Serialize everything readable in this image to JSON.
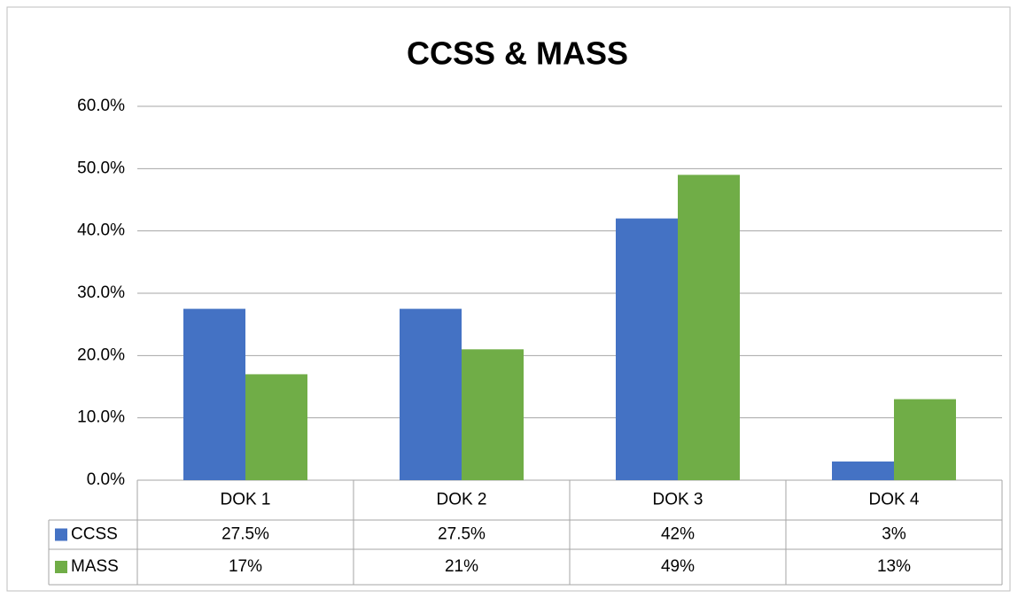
{
  "chart_data": {
    "type": "bar",
    "title": "CCSS & MASS",
    "categories": [
      "DOK 1",
      "DOK 2",
      "DOK 3",
      "DOK 4"
    ],
    "series": [
      {
        "name": "CCSS",
        "color": "#4472c4",
        "values": [
          27.5,
          27.5,
          42,
          3
        ],
        "value_labels": [
          "27.5%",
          "27.5%",
          "42%",
          "3%"
        ]
      },
      {
        "name": "MASS",
        "color": "#70ad47",
        "values": [
          17,
          21,
          49,
          13
        ],
        "value_labels": [
          "17%",
          "21%",
          "49%",
          "13%"
        ]
      }
    ],
    "ylim": [
      0,
      60
    ],
    "yticks": [
      {
        "value": 0,
        "label": "0.0%"
      },
      {
        "value": 10,
        "label": "10.0%"
      },
      {
        "value": 20,
        "label": "20.0%"
      },
      {
        "value": 30,
        "label": "30.0%"
      },
      {
        "value": 40,
        "label": "40.0%"
      },
      {
        "value": 50,
        "label": "50.0%"
      },
      {
        "value": 60,
        "label": "60.0%"
      }
    ],
    "grid": true
  }
}
